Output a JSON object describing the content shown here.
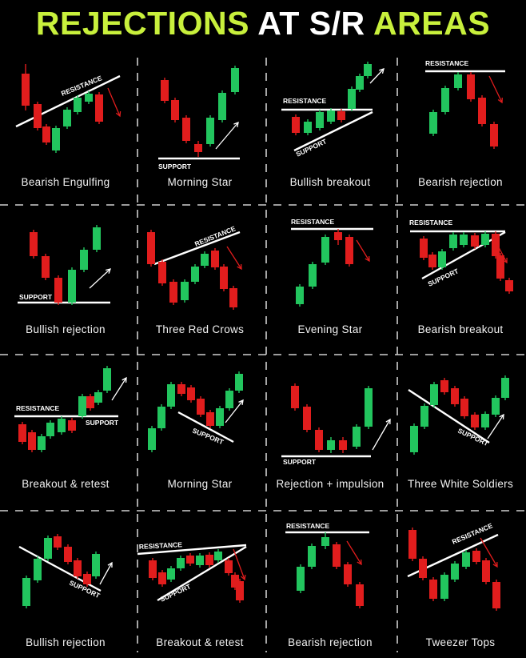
{
  "title": {
    "part1": "REJECTIONS",
    "part2": "AT S/R",
    "part3": "AREAS"
  },
  "colors": {
    "bull": "#22c55e",
    "bear": "#e11d1d",
    "line": "#ffffff",
    "title_accent": "#c8f03c",
    "background": "#000000"
  },
  "patterns": [
    {
      "name": "Bearish Engulfing",
      "levels": [
        "RESISTANCE"
      ]
    },
    {
      "name": "Morning Star",
      "levels": [
        "SUPPORT"
      ]
    },
    {
      "name": "Bullish breakout",
      "levels": [
        "RESISTANCE",
        "SUPPORT"
      ]
    },
    {
      "name": "Bearish rejection",
      "levels": [
        "RESISTANCE"
      ]
    },
    {
      "name": "Bullish rejection",
      "levels": [
        "SUPPORT"
      ]
    },
    {
      "name": "Three Red Crows",
      "levels": [
        "RESISTANCE"
      ]
    },
    {
      "name": "Evening Star",
      "levels": [
        "RESISTANCE"
      ]
    },
    {
      "name": "Bearish breakout",
      "levels": [
        "RESISTANCE",
        "SUPPORT"
      ]
    },
    {
      "name": "Breakout & retest",
      "levels": [
        "RESISTANCE",
        "SUPPORT"
      ]
    },
    {
      "name": "Morning Star",
      "levels": [
        "SUPPORT"
      ]
    },
    {
      "name": "Rejection + impulsion",
      "levels": [
        "SUPPORT"
      ]
    },
    {
      "name": "Three White Soldiers",
      "levels": [
        "SUPPORT"
      ]
    },
    {
      "name": "Bullish rejection",
      "levels": [
        "SUPPORT"
      ]
    },
    {
      "name": "Breakout & retest",
      "levels": [
        "RESISTANCE",
        "SUPPORT"
      ]
    },
    {
      "name": "Bearish rejection",
      "levels": [
        "RESISTANCE"
      ]
    },
    {
      "name": "Tweezer Tops",
      "levels": [
        "RESISTANCE"
      ]
    }
  ]
}
